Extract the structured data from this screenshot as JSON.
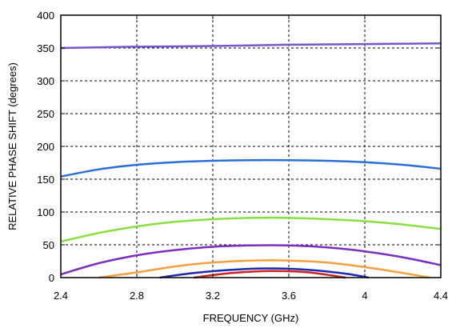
{
  "chart_data": {
    "type": "line",
    "title": "",
    "xlabel": "FREQUENCY (GHz)",
    "ylabel": "RELATIVE PHASE SHIFT  (degrees)",
    "xlim": [
      2.4,
      4.4
    ],
    "ylim": [
      0,
      400
    ],
    "xticks": [
      2.4,
      2.8,
      3.2,
      3.6,
      4,
      4.4
    ],
    "xtick_labels": [
      "2.4",
      "2.8",
      "3.2",
      "3.6",
      "4",
      "4.4"
    ],
    "yticks": [
      0,
      50,
      100,
      150,
      200,
      250,
      300,
      350,
      400
    ],
    "ytick_labels": [
      "0",
      "50",
      "100",
      "150",
      "200",
      "250",
      "300",
      "350",
      "400"
    ],
    "grid": true,
    "series": [
      {
        "color": "#7755cc",
        "x": [
          2.4,
          2.8,
          3.2,
          3.6,
          4.0,
          4.4
        ],
        "y": [
          350,
          352,
          353,
          355,
          356,
          357
        ]
      },
      {
        "color": "#2a6fd8",
        "x": [
          2.4,
          2.6,
          2.8,
          3.0,
          3.2,
          3.4,
          3.6,
          3.8,
          4.0,
          4.2,
          4.4
        ],
        "y": [
          154,
          165,
          172,
          176,
          178,
          179,
          179,
          178,
          176,
          172,
          166
        ]
      },
      {
        "color": "#88e040",
        "x": [
          2.4,
          2.6,
          2.8,
          3.0,
          3.2,
          3.4,
          3.6,
          3.8,
          4.0,
          4.2,
          4.4
        ],
        "y": [
          55,
          68,
          78,
          85,
          89,
          91,
          91,
          89,
          86,
          81,
          74
        ]
      },
      {
        "color": "#7b2fc0",
        "x": [
          2.4,
          2.6,
          2.8,
          3.0,
          3.2,
          3.4,
          3.6,
          3.8,
          4.0,
          4.2,
          4.4
        ],
        "y": [
          5,
          22,
          34,
          42,
          47,
          49,
          49,
          46,
          40,
          31,
          19
        ]
      },
      {
        "color": "#f5a040",
        "x": [
          2.6,
          2.8,
          3.0,
          3.2,
          3.4,
          3.6,
          3.8,
          4.0,
          4.2,
          4.34
        ],
        "y": [
          0,
          8,
          17,
          23,
          26,
          26,
          23,
          16,
          7,
          0
        ]
      },
      {
        "color": "#1c28b0",
        "x": [
          2.92,
          3.1,
          3.3,
          3.5,
          3.7,
          3.9,
          4.02
        ],
        "y": [
          0,
          7,
          12,
          14,
          12,
          6,
          0
        ]
      },
      {
        "color": "#cc2222",
        "x": [
          3.1,
          3.3,
          3.5,
          3.7,
          3.9
        ],
        "y": [
          0,
          7,
          10,
          8,
          0
        ]
      }
    ]
  }
}
